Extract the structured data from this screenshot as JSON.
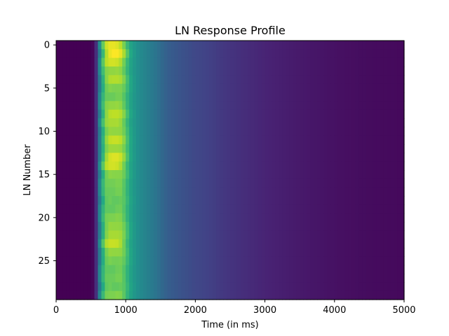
{
  "chart_data": {
    "type": "heatmap",
    "title": "LN Response Profile",
    "xlabel": "Time (in ms)",
    "ylabel": "LN Number",
    "xlim": [
      0,
      5000
    ],
    "ylim": [
      29.5,
      -0.5
    ],
    "y_axis_inverted": true,
    "xticks": [
      0,
      1000,
      2000,
      3000,
      4000,
      5000
    ],
    "xtick_labels": [
      "0",
      "1000",
      "2000",
      "3000",
      "4000",
      "5000"
    ],
    "yticks": [
      0,
      5,
      10,
      15,
      20,
      25
    ],
    "ytick_labels": [
      "0",
      "5",
      "10",
      "15",
      "20",
      "25"
    ],
    "grid": false,
    "colormap": "viridis",
    "value_range": [
      0,
      1
    ],
    "rows": 30,
    "time_step_ms": 50,
    "time_start_ms": 0,
    "row_peak_time_ms": [
      800,
      850,
      800,
      800,
      850,
      850,
      800,
      800,
      850,
      800,
      850,
      850,
      850,
      850,
      800,
      850,
      800,
      800,
      850,
      800,
      800,
      850,
      850,
      800,
      850,
      850,
      800,
      800,
      850,
      800
    ],
    "row_peak_value": [
      0.98,
      1.0,
      0.96,
      0.9,
      0.93,
      0.88,
      0.86,
      0.9,
      0.94,
      0.92,
      0.9,
      0.95,
      0.91,
      0.97,
      0.96,
      0.89,
      0.87,
      0.86,
      0.85,
      0.85,
      0.88,
      0.9,
      0.92,
      0.95,
      0.9,
      0.87,
      0.85,
      0.86,
      0.85,
      0.88
    ],
    "response_profile": {
      "time_ms": [
        0,
        500,
        550,
        600,
        650,
        700,
        800,
        900,
        1000,
        1100,
        1200,
        1300,
        1400,
        1500,
        1600,
        1800,
        2000,
        2500,
        3000,
        3500,
        4000,
        4500,
        5000
      ],
      "level": [
        0.0,
        0.0,
        0.04,
        0.3,
        0.6,
        0.82,
        0.95,
        0.92,
        0.8,
        0.68,
        0.6,
        0.55,
        0.5,
        0.44,
        0.38,
        0.32,
        0.27,
        0.19,
        0.13,
        0.09,
        0.06,
        0.04,
        0.03
      ]
    }
  }
}
